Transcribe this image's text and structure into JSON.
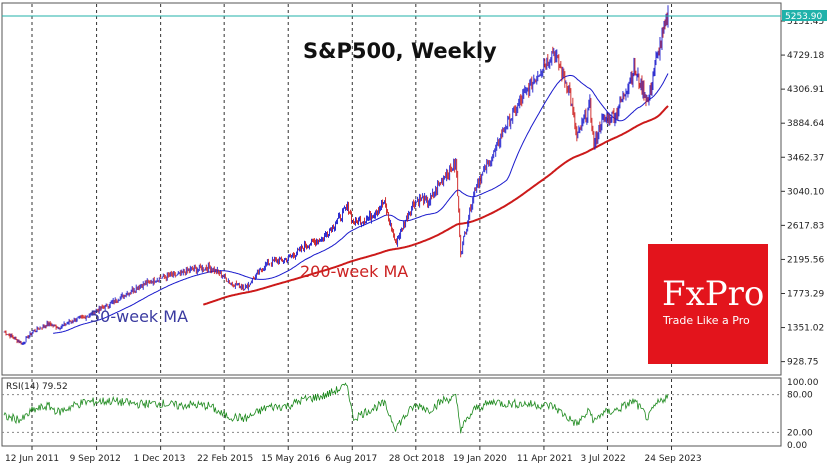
{
  "chart_data": {
    "type": "candlestick",
    "title": "S&P500, Weekly",
    "price_axis": {
      "ticks": [
        "5151.45",
        "4729.18",
        "4306.91",
        "3884.64",
        "3462.37",
        "3040.10",
        "2617.83",
        "2195.56",
        "1773.29",
        "1351.02",
        "928.75"
      ],
      "range": [
        800,
        5350
      ],
      "last_price_label": "5253.90"
    },
    "time_axis": {
      "labels": [
        "12 Jun 2011",
        "9 Sep 2012",
        "1 Dec 2013",
        "22 Feb 2015",
        "15 May 2016",
        "6 Aug 2017",
        "28 Oct 2018",
        "19 Jan 2020",
        "11 Apr 2021",
        "3 Jul 2022",
        "24 Sep 2023"
      ]
    },
    "series": [
      {
        "name": "50-week MA",
        "color": "#1a1acc"
      },
      {
        "name": "200-week MA",
        "color": "#cc1a1a"
      }
    ],
    "price_path": {
      "years": [
        2011.45,
        2011.8,
        2012.0,
        2012.3,
        2012.5,
        2012.8,
        2013.0,
        2013.5,
        2014.0,
        2014.5,
        2014.8,
        2015.0,
        2015.4,
        2015.65,
        2015.8,
        2016.1,
        2016.5,
        2016.9,
        2017.2,
        2017.6,
        2018.05,
        2018.15,
        2018.45,
        2018.75,
        2018.97,
        2019.3,
        2019.45,
        2019.6,
        2019.9,
        2020.13,
        2020.22,
        2020.5,
        2020.9,
        2021.0,
        2021.5,
        2021.99,
        2022.3,
        2022.45,
        2022.7,
        2022.78,
        2022.92,
        2023.2,
        2023.55,
        2023.82,
        2023.95,
        2024.2
      ],
      "values": [
        1300,
        1150,
        1300,
        1400,
        1350,
        1450,
        1480,
        1650,
        1850,
        1980,
        2000,
        2060,
        2100,
        2000,
        1900,
        1850,
        2150,
        2200,
        2350,
        2470,
        2850,
        2650,
        2700,
        2900,
        2400,
        2880,
        2950,
        2900,
        3230,
        3380,
        2280,
        3100,
        3550,
        3750,
        4300,
        4780,
        4300,
        3700,
        4100,
        3600,
        3900,
        4000,
        4550,
        4150,
        4600,
        5250
      ]
    },
    "rsi": {
      "label": "RSI(14) 79.52",
      "ticks": [
        "100.00",
        "80.00",
        "20.00",
        "0.00"
      ],
      "levels": [
        80,
        20
      ],
      "years": [
        2011.45,
        2011.8,
        2012.0,
        2012.3,
        2012.5,
        2012.8,
        2013.0,
        2013.5,
        2014.0,
        2014.5,
        2014.8,
        2015.0,
        2015.4,
        2015.65,
        2015.8,
        2016.1,
        2016.5,
        2016.9,
        2017.2,
        2017.6,
        2018.05,
        2018.15,
        2018.45,
        2018.75,
        2018.97,
        2019.3,
        2019.45,
        2019.6,
        2019.9,
        2020.13,
        2020.22,
        2020.5,
        2020.9,
        2021.0,
        2021.5,
        2021.99,
        2022.3,
        2022.45,
        2022.7,
        2022.78,
        2022.92,
        2023.2,
        2023.55,
        2023.82,
        2023.95,
        2024.2
      ],
      "values": [
        45,
        40,
        55,
        62,
        52,
        63,
        68,
        70,
        65,
        66,
        62,
        64,
        62,
        48,
        45,
        42,
        60,
        62,
        72,
        78,
        95,
        42,
        55,
        66,
        28,
        60,
        63,
        55,
        72,
        75,
        25,
        58,
        70,
        66,
        65,
        62,
        42,
        33,
        55,
        36,
        50,
        55,
        70,
        42,
        62,
        79.52
      ]
    }
  },
  "logo": {
    "name": "FxPro",
    "tagline": "Trade Like a Pro",
    "color": "#e3141c"
  }
}
